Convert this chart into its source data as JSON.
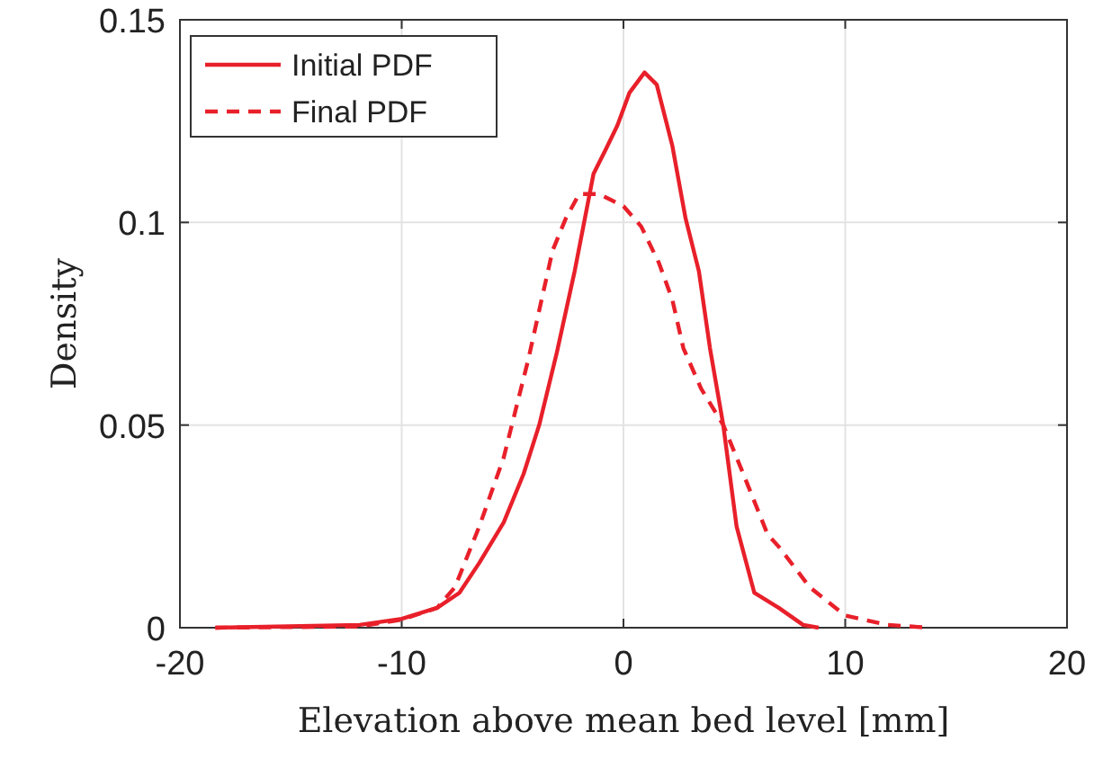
{
  "chart_data": {
    "type": "line",
    "xlabel": "Elevation above mean bed level [mm]",
    "ylabel": "Density",
    "xlim": [
      -20,
      20
    ],
    "xticks": [
      -20,
      -10,
      0,
      10,
      20
    ],
    "ylim": [
      0,
      0.15
    ],
    "yticks": [
      0,
      0.05,
      0.1,
      0.15
    ],
    "grid": true,
    "legend": "top left",
    "series": [
      {
        "name": "Initial PDF",
        "color": "#e8202a",
        "line_style": "solid",
        "x": [
          -18.4,
          -11.9,
          -10,
          -8.4,
          -7.4,
          -6.5,
          -5.4,
          -4.5,
          -3.8,
          -3,
          -2.2,
          -1.35,
          -0.8,
          -0.27,
          0.27,
          0.95,
          1.5,
          2.2,
          2.8,
          3.4,
          3.9,
          4.5,
          5.1,
          5.9,
          7,
          8.1,
          8.8
        ],
        "values": [
          0,
          0.0007,
          0.0022,
          0.0049,
          0.0086,
          0.016,
          0.026,
          0.038,
          0.05,
          0.068,
          0.088,
          0.112,
          0.118,
          0.124,
          0.132,
          0.137,
          0.134,
          0.119,
          0.101,
          0.088,
          0.069,
          0.05,
          0.025,
          0.0086,
          0.0049,
          0.0007,
          0
        ]
      },
      {
        "name": "Final PDF",
        "color": "#e8202a",
        "line_style": "dashed",
        "x": [
          -18.4,
          -11.9,
          -10,
          -8.4,
          -7.6,
          -6.5,
          -5.4,
          -4.3,
          -3.2,
          -2.6,
          -2,
          -1.1,
          0,
          0.8,
          1.6,
          2.2,
          2.7,
          3.5,
          4.5,
          5.4,
          6.5,
          7,
          8.4,
          10,
          11.9,
          13.8
        ],
        "values": [
          0,
          0.0003,
          0.002,
          0.0049,
          0.01,
          0.025,
          0.042,
          0.066,
          0.093,
          0.101,
          0.107,
          0.107,
          0.104,
          0.099,
          0.09,
          0.081,
          0.069,
          0.059,
          0.05,
          0.038,
          0.023,
          0.02,
          0.01,
          0.003,
          0.0007,
          0
        ]
      }
    ]
  }
}
